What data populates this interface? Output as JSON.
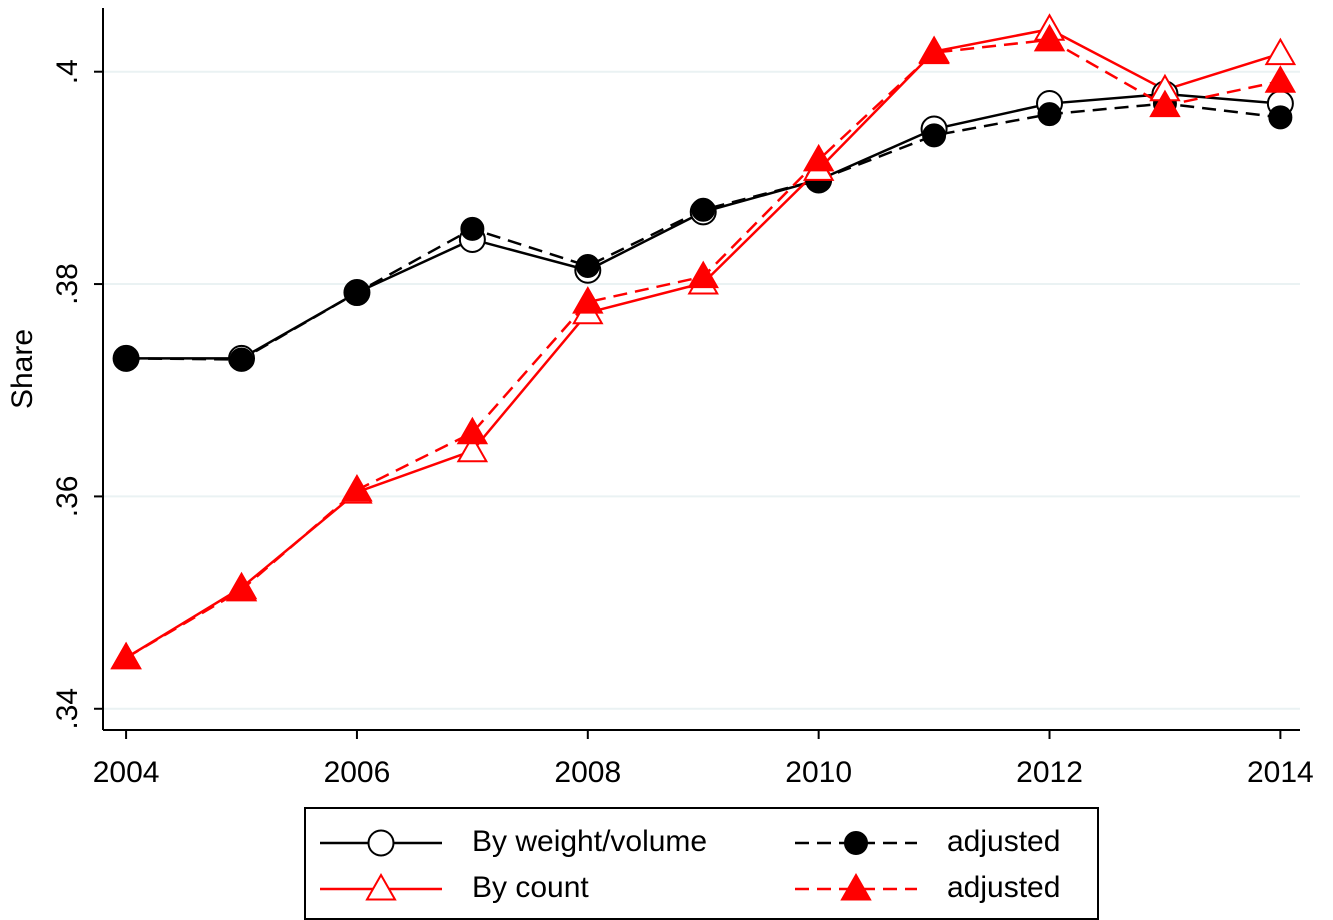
{
  "chart_data": {
    "type": "line",
    "y_label": "Share",
    "x": [
      2004,
      2005,
      2006,
      2007,
      2008,
      2009,
      2010,
      2011,
      2012,
      2013,
      2014
    ],
    "xlim": [
      2003.8,
      2014.17
    ],
    "xticks": [
      2004,
      2006,
      2008,
      2010,
      2012,
      2014
    ],
    "ylim": [
      0.338,
      0.406
    ],
    "yticks": [
      {
        "value": 0.34,
        "label": ".34"
      },
      {
        "value": 0.36,
        "label": ".36"
      },
      {
        "value": 0.38,
        "label": ".38"
      },
      {
        "value": 0.4,
        "label": ".4"
      }
    ],
    "grid": true,
    "series": [
      {
        "name": "By weight/volume",
        "color": "#000000",
        "dash": false,
        "marker": "circle",
        "filled": false,
        "values": [
          0.373,
          0.373,
          0.3792,
          0.3842,
          0.3813,
          0.3868,
          0.3898,
          0.3946,
          0.397,
          0.3979,
          0.397
        ]
      },
      {
        "name": "adjusted",
        "color": "#000000",
        "dash": true,
        "marker": "circle",
        "filled": true,
        "values": [
          0.373,
          0.3729,
          0.3792,
          0.3852,
          0.3817,
          0.387,
          0.3898,
          0.394,
          0.396,
          0.397,
          0.3957
        ]
      },
      {
        "name": "By count",
        "color": "#ff0000",
        "dash": false,
        "marker": "triangle",
        "filled": false,
        "values": [
          0.3448,
          0.3514,
          0.3604,
          0.3643,
          0.3773,
          0.3801,
          0.3908,
          0.4019,
          0.404,
          0.3983,
          0.4017
        ]
      },
      {
        "name": "adjusted",
        "color": "#ff0000",
        "dash": true,
        "marker": "triangle",
        "filled": true,
        "values": [
          0.3448,
          0.3512,
          0.3606,
          0.366,
          0.3783,
          0.3807,
          0.3917,
          0.4018,
          0.403,
          0.3968,
          0.3991
        ]
      }
    ]
  }
}
